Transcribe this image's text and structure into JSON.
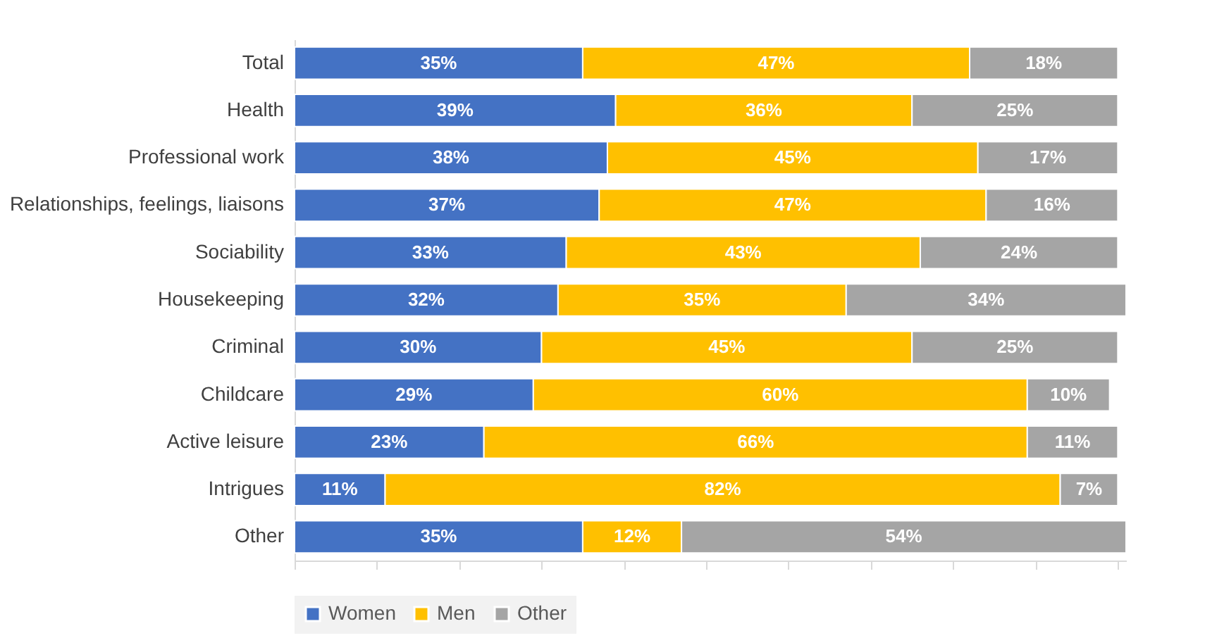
{
  "chart_data": {
    "type": "bar",
    "orientation": "horizontal",
    "stacked": true,
    "categories": [
      "Total",
      "Health",
      "Professional work",
      "Relationships, feelings, liaisons",
      "Sociability",
      "Housekeeping",
      "Criminal",
      "Childcare",
      "Active leisure",
      "Intrigues",
      "Other"
    ],
    "series": [
      {
        "name": "Women",
        "color": "#4472c4",
        "values": [
          35,
          39,
          38,
          37,
          33,
          32,
          30,
          29,
          23,
          11,
          35
        ],
        "value_labels": [
          "35%",
          "39%",
          "38%",
          "37%",
          "33%",
          "32%",
          "30%",
          "29%",
          "23%",
          "11%",
          "35%"
        ]
      },
      {
        "name": "Men",
        "color": "#ffc000",
        "values": [
          47,
          36,
          45,
          47,
          43,
          35,
          45,
          60,
          66,
          82,
          12
        ],
        "value_labels": [
          "47%",
          "36%",
          "45%",
          "47%",
          "43%",
          "35%",
          "45%",
          "60%",
          "66%",
          "82%",
          "12%"
        ]
      },
      {
        "name": "Other",
        "color": "#a5a5a5",
        "values": [
          18,
          25,
          17,
          16,
          24,
          34,
          25,
          10,
          11,
          7,
          54
        ],
        "value_labels": [
          "18%",
          "25%",
          "17%",
          "16%",
          "24%",
          "34%",
          "25%",
          "10%",
          "11%",
          "7%",
          "54%"
        ]
      }
    ],
    "xlim": [
      0,
      101
    ],
    "xticks": [
      {
        "value": 0,
        "label": null
      },
      {
        "value": 10,
        "label": null
      },
      {
        "value": 20,
        "label": null
      },
      {
        "value": 30,
        "label": null
      },
      {
        "value": 40,
        "label": null
      },
      {
        "value": 50,
        "label": null
      },
      {
        "value": 60,
        "label": null
      },
      {
        "value": 70,
        "label": null
      },
      {
        "value": 80,
        "label": null
      },
      {
        "value": 90,
        "label": null
      },
      {
        "value": 100,
        "label": null
      }
    ],
    "tick_labels": "y",
    "grid": false,
    "legend": "bottom"
  }
}
